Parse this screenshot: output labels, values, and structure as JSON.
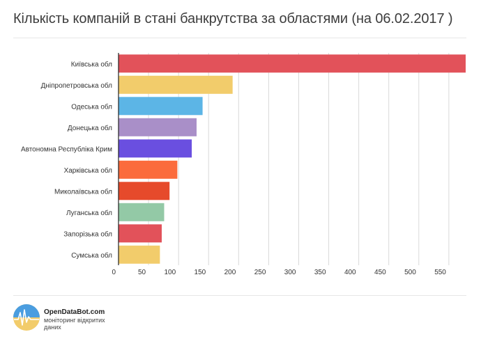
{
  "header": {
    "title": "Кількість компаній в стані банкрутства за областями (на 06.02.2017 )"
  },
  "footer": {
    "brand": "OpenDataBot.com",
    "tagline": "моніторинг відкритих даних"
  },
  "chart_data": {
    "type": "bar",
    "orientation": "horizontal",
    "title": "Кількість компаній в стані банкрутства за областями (на 06.02.2017 )",
    "xlabel": "",
    "ylabel": "",
    "categories": [
      "Київська обл",
      "Дніпропетровська обл",
      "Одеська обл",
      "Донецька обл",
      "Автономна Республіка Крим",
      "Харківська обл",
      "Миколаївська обл",
      "Луганська обл",
      "Запорізька обл",
      "Сумська обл"
    ],
    "values": [
      578,
      190,
      140,
      130,
      122,
      98,
      85,
      76,
      72,
      69
    ],
    "colors": [
      "#e2525a",
      "#f2cc6b",
      "#5cb5e6",
      "#a98fc8",
      "#6a4fe0",
      "#fb6b3c",
      "#e64a2b",
      "#93c9a6",
      "#e2525a",
      "#f2cc6b"
    ],
    "xlim": [
      0,
      578
    ],
    "xticks": [
      0,
      50,
      100,
      150,
      200,
      250,
      300,
      350,
      400,
      450,
      500,
      550
    ],
    "grid": true
  }
}
